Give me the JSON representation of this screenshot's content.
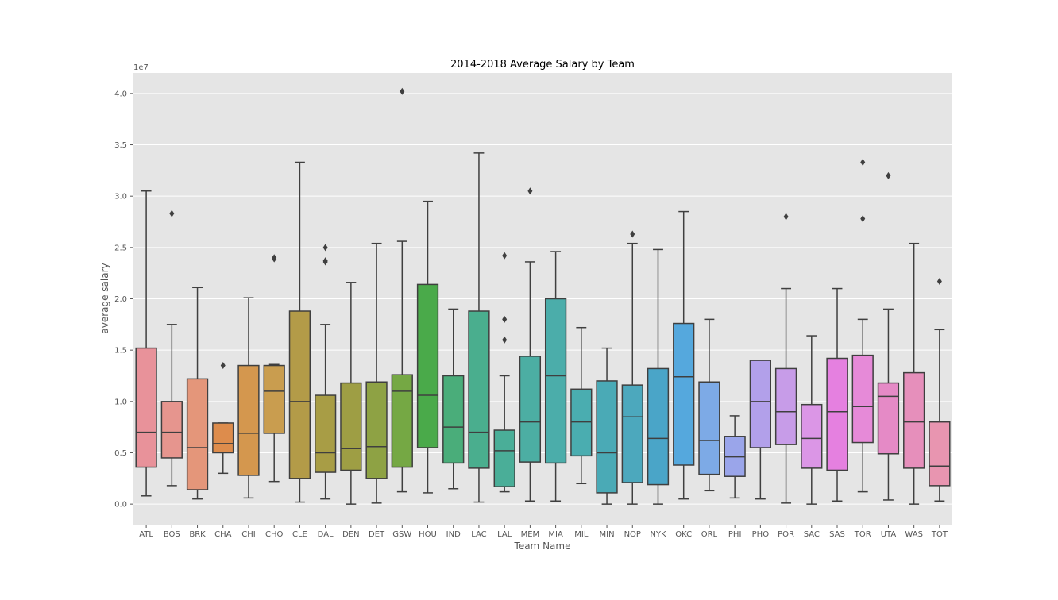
{
  "chart_data": {
    "type": "box",
    "title": "2014-2018 Average Salary by Team",
    "xlabel": "Team Name",
    "ylabel": "average salary",
    "y_exponent_label": "1e7",
    "ylim": [
      -0.2,
      4.2
    ],
    "yticks": [
      "0.0",
      "0.5",
      "1.0",
      "1.5",
      "2.0",
      "2.5",
      "3.0",
      "3.5",
      "4.0"
    ],
    "ytick_values": [
      0.0,
      0.5,
      1.0,
      1.5,
      2.0,
      2.5,
      3.0,
      3.5,
      4.0
    ],
    "grid": true,
    "boxes": [
      {
        "team": "ATL",
        "color": "#e8929a",
        "wlo": 0.08,
        "q1": 0.36,
        "med": 0.7,
        "q3": 1.52,
        "whi": 3.05,
        "outliers": []
      },
      {
        "team": "BOS",
        "color": "#e6958e",
        "wlo": 0.18,
        "q1": 0.45,
        "med": 0.7,
        "q3": 1.0,
        "whi": 1.75,
        "outliers": [
          2.83
        ]
      },
      {
        "team": "BRK",
        "color": "#e4967a",
        "wlo": 0.05,
        "q1": 0.14,
        "med": 0.55,
        "q3": 1.22,
        "whi": 2.11,
        "outliers": []
      },
      {
        "team": "CHA",
        "color": "#dd8c4c",
        "wlo": 0.3,
        "q1": 0.5,
        "med": 0.59,
        "q3": 0.79,
        "whi": 0.79,
        "outliers": [
          1.35
        ]
      },
      {
        "team": "CHI",
        "color": "#d4974e",
        "wlo": 0.06,
        "q1": 0.28,
        "med": 0.69,
        "q3": 1.35,
        "whi": 2.01,
        "outliers": []
      },
      {
        "team": "CHO",
        "color": "#c99d4f",
        "wlo": 0.22,
        "q1": 0.69,
        "med": 1.1,
        "q3": 1.35,
        "whi": 1.36,
        "outliers": [
          2.4,
          2.39
        ]
      },
      {
        "team": "CLE",
        "color": "#b39b48",
        "wlo": 0.02,
        "q1": 0.25,
        "med": 1.0,
        "q3": 1.88,
        "whi": 3.33,
        "outliers": []
      },
      {
        "team": "DAL",
        "color": "#a89d45",
        "wlo": 0.05,
        "q1": 0.31,
        "med": 0.5,
        "q3": 1.06,
        "whi": 1.75,
        "outliers": [
          2.5,
          2.36,
          2.37
        ]
      },
      {
        "team": "DEN",
        "color": "#9e9e44",
        "wlo": 0.0,
        "q1": 0.33,
        "med": 0.54,
        "q3": 1.18,
        "whi": 2.16,
        "outliers": []
      },
      {
        "team": "DET",
        "color": "#8ea244",
        "wlo": 0.01,
        "q1": 0.25,
        "med": 0.56,
        "q3": 1.19,
        "whi": 2.54,
        "outliers": []
      },
      {
        "team": "GSW",
        "color": "#75a844",
        "wlo": 0.12,
        "q1": 0.36,
        "med": 1.1,
        "q3": 1.26,
        "whi": 2.56,
        "outliers": [
          4.02
        ]
      },
      {
        "team": "HOU",
        "color": "#4aaa4a",
        "wlo": 0.11,
        "q1": 0.55,
        "med": 1.06,
        "q3": 2.14,
        "whi": 2.95,
        "outliers": []
      },
      {
        "team": "IND",
        "color": "#4aad7a",
        "wlo": 0.15,
        "q1": 0.4,
        "med": 0.75,
        "q3": 1.25,
        "whi": 1.9,
        "outliers": []
      },
      {
        "team": "LAC",
        "color": "#4aae8e",
        "wlo": 0.02,
        "q1": 0.35,
        "med": 0.7,
        "q3": 1.88,
        "whi": 3.42,
        "outliers": []
      },
      {
        "team": "LAL",
        "color": "#4aae98",
        "wlo": 0.12,
        "q1": 0.17,
        "med": 0.52,
        "q3": 0.72,
        "whi": 1.25,
        "outliers": [
          2.42,
          1.8,
          1.6
        ]
      },
      {
        "team": "MEM",
        "color": "#4caea3",
        "wlo": 0.03,
        "q1": 0.41,
        "med": 0.8,
        "q3": 1.44,
        "whi": 2.36,
        "outliers": [
          3.05
        ]
      },
      {
        "team": "MIA",
        "color": "#4badaa",
        "wlo": 0.03,
        "q1": 0.4,
        "med": 1.25,
        "q3": 2.0,
        "whi": 2.46,
        "outliers": []
      },
      {
        "team": "MIL",
        "color": "#4aadb0",
        "wlo": 0.2,
        "q1": 0.47,
        "med": 0.8,
        "q3": 1.12,
        "whi": 1.72,
        "outliers": []
      },
      {
        "team": "MIN",
        "color": "#4aaab6",
        "wlo": 0.0,
        "q1": 0.11,
        "med": 0.5,
        "q3": 1.2,
        "whi": 1.52,
        "outliers": []
      },
      {
        "team": "NOP",
        "color": "#4ca8bd",
        "wlo": 0.0,
        "q1": 0.21,
        "med": 0.85,
        "q3": 1.16,
        "whi": 2.54,
        "outliers": [
          2.63
        ]
      },
      {
        "team": "NYK",
        "color": "#4aa5c8",
        "wlo": 0.0,
        "q1": 0.19,
        "med": 0.64,
        "q3": 1.32,
        "whi": 2.48,
        "outliers": []
      },
      {
        "team": "OKC",
        "color": "#55a8dd",
        "wlo": 0.05,
        "q1": 0.38,
        "med": 1.24,
        "q3": 1.76,
        "whi": 2.85,
        "outliers": []
      },
      {
        "team": "ORL",
        "color": "#7daae6",
        "wlo": 0.13,
        "q1": 0.29,
        "med": 0.62,
        "q3": 1.19,
        "whi": 1.8,
        "outliers": []
      },
      {
        "team": "PHI",
        "color": "#9aa5ea",
        "wlo": 0.06,
        "q1": 0.27,
        "med": 0.46,
        "q3": 0.66,
        "whi": 0.86,
        "outliers": []
      },
      {
        "team": "PHO",
        "color": "#b2a0ea",
        "wlo": 0.05,
        "q1": 0.55,
        "med": 1.0,
        "q3": 1.4,
        "whi": 1.4,
        "outliers": []
      },
      {
        "team": "POR",
        "color": "#c79ce8",
        "wlo": 0.01,
        "q1": 0.58,
        "med": 0.9,
        "q3": 1.32,
        "whi": 2.1,
        "outliers": [
          2.8
        ]
      },
      {
        "team": "SAC",
        "color": "#db96e6",
        "wlo": 0.0,
        "q1": 0.35,
        "med": 0.64,
        "q3": 0.97,
        "whi": 1.64,
        "outliers": []
      },
      {
        "team": "SAS",
        "color": "#e580e0",
        "wlo": 0.03,
        "q1": 0.33,
        "med": 0.9,
        "q3": 1.42,
        "whi": 2.1,
        "outliers": []
      },
      {
        "team": "TOR",
        "color": "#e68ad8",
        "wlo": 0.12,
        "q1": 0.6,
        "med": 0.95,
        "q3": 1.45,
        "whi": 1.8,
        "outliers": [
          3.33,
          2.78
        ]
      },
      {
        "team": "UTA",
        "color": "#e58ac6",
        "wlo": 0.04,
        "q1": 0.49,
        "med": 1.05,
        "q3": 1.18,
        "whi": 1.9,
        "outliers": [
          3.2
        ]
      },
      {
        "team": "WAS",
        "color": "#e68fbb",
        "wlo": 0.0,
        "q1": 0.35,
        "med": 0.8,
        "q3": 1.28,
        "whi": 2.54,
        "outliers": []
      },
      {
        "team": "TOT",
        "color": "#e895b0",
        "wlo": 0.03,
        "q1": 0.18,
        "med": 0.37,
        "q3": 0.8,
        "whi": 1.7,
        "outliers": [
          2.17
        ]
      }
    ]
  }
}
